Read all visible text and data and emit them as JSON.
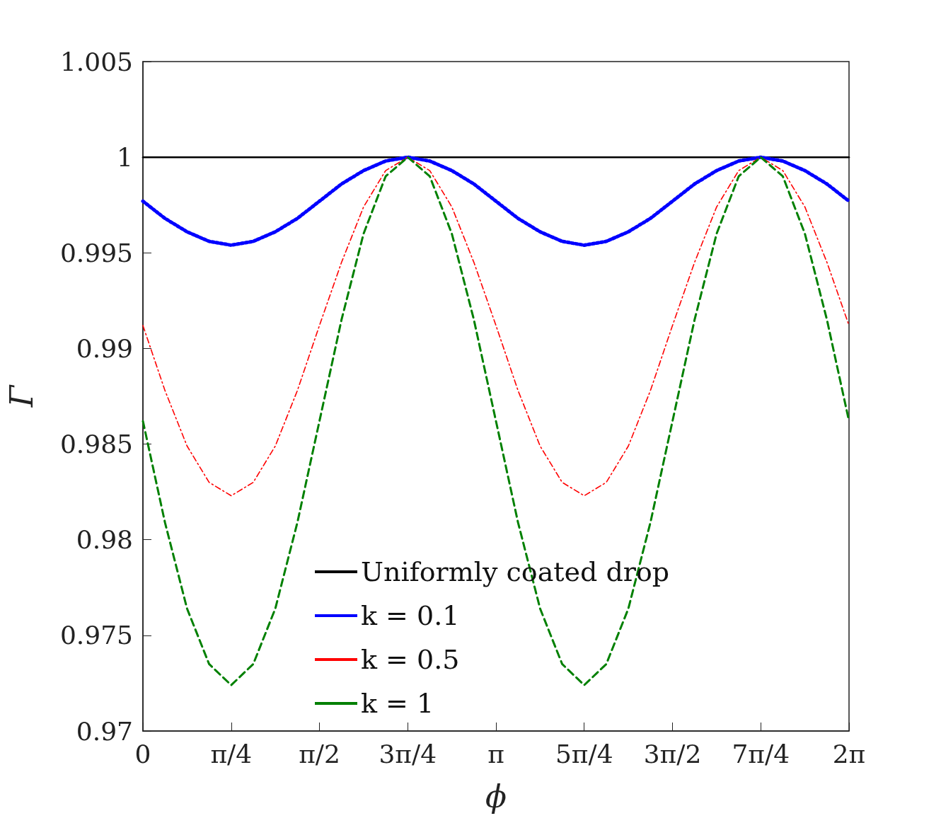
{
  "chart_data": {
    "type": "line",
    "xlabel": "ϕ",
    "ylabel": "Γ",
    "xlim": [
      0,
      6.28319
    ],
    "ylim": [
      0.97,
      1.005
    ],
    "xticks": [
      {
        "value": 0,
        "label": "0"
      },
      {
        "value": 0.7854,
        "label": "π/4"
      },
      {
        "value": 1.5708,
        "label": "π/2"
      },
      {
        "value": 2.35619,
        "label": "3π/4"
      },
      {
        "value": 3.14159,
        "label": "π"
      },
      {
        "value": 3.92699,
        "label": "5π/4"
      },
      {
        "value": 4.71239,
        "label": "3π/2"
      },
      {
        "value": 5.49779,
        "label": "7π/4"
      },
      {
        "value": 6.28319,
        "label": "2π"
      }
    ],
    "yticks": [
      0.97,
      0.975,
      0.98,
      0.985,
      0.99,
      0.995,
      1,
      1.005
    ],
    "grid": false,
    "legend": "bottom",
    "marker": "none",
    "series": [
      {
        "name": "Uniformly coated drop",
        "color": "#000000",
        "line_style": "solid",
        "x": [
          0,
          6.28319
        ],
        "values": [
          1,
          1
        ]
      },
      {
        "name": "k = 0.1",
        "color": "#0000ff",
        "line_style": "dotted",
        "x": [
          0,
          0.19635,
          0.3927,
          0.58905,
          0.7854,
          0.98175,
          1.1781,
          1.37445,
          1.5708,
          1.76715,
          1.9635,
          2.15985,
          2.35619,
          2.55254,
          2.74889,
          2.94524,
          3.14159,
          3.33794,
          3.53429,
          3.73064,
          3.92699,
          4.12334,
          4.31969,
          4.51604,
          4.71239,
          4.90874,
          5.10509,
          5.30144,
          5.49779,
          5.69414,
          5.89049,
          6.08684,
          6.28319
        ],
        "values": [
          0.9977,
          0.9968,
          0.9961,
          0.9956,
          0.9954,
          0.9956,
          0.9961,
          0.9968,
          0.9977,
          0.9986,
          0.9993,
          0.9998,
          1,
          0.9998,
          0.9993,
          0.9986,
          0.9977,
          0.9968,
          0.9961,
          0.9956,
          0.9954,
          0.9956,
          0.9961,
          0.9968,
          0.9977,
          0.9986,
          0.9993,
          0.9998,
          1,
          0.9998,
          0.9993,
          0.9986,
          0.9977
        ]
      },
      {
        "name": "k = 0.5",
        "color": "#ff0000",
        "line_style": "dashdot",
        "x": [
          0,
          0.19635,
          0.3927,
          0.58905,
          0.7854,
          0.98175,
          1.1781,
          1.37445,
          1.5708,
          1.76715,
          1.9635,
          2.15985,
          2.35619,
          2.55254,
          2.74889,
          2.94524,
          3.14159,
          3.33794,
          3.53429,
          3.73064,
          3.92699,
          4.12334,
          4.31969,
          4.51604,
          4.71239,
          4.90874,
          5.10509,
          5.30144,
          5.49779,
          5.69414,
          5.89049,
          6.08684,
          6.28319
        ],
        "values": [
          0.9912,
          0.9878,
          0.9849,
          0.983,
          0.9823,
          0.983,
          0.9849,
          0.9878,
          0.9912,
          0.9945,
          0.9974,
          0.9993,
          1,
          0.9993,
          0.9974,
          0.9945,
          0.9912,
          0.9878,
          0.9849,
          0.983,
          0.9823,
          0.983,
          0.9849,
          0.9878,
          0.9912,
          0.9945,
          0.9974,
          0.9993,
          1,
          0.9993,
          0.9974,
          0.9945,
          0.9912
        ]
      },
      {
        "name": "k = 1",
        "color": "#008000",
        "line_style": "dashed",
        "x": [
          0,
          0.19635,
          0.3927,
          0.58905,
          0.7854,
          0.98175,
          1.1781,
          1.37445,
          1.5708,
          1.76715,
          1.9635,
          2.15985,
          2.35619,
          2.55254,
          2.74889,
          2.94524,
          3.14159,
          3.33794,
          3.53429,
          3.73064,
          3.92699,
          4.12334,
          4.31969,
          4.51604,
          4.71239,
          4.90874,
          5.10509,
          5.30144,
          5.49779,
          5.69414,
          5.89049,
          6.08684,
          6.28319
        ],
        "values": [
          0.9862,
          0.9809,
          0.9764,
          0.9735,
          0.9724,
          0.9735,
          0.9764,
          0.9809,
          0.9862,
          0.9915,
          0.996,
          0.999,
          1,
          0.999,
          0.996,
          0.9915,
          0.9862,
          0.9809,
          0.9764,
          0.9735,
          0.9724,
          0.9735,
          0.9764,
          0.9809,
          0.9862,
          0.9915,
          0.996,
          0.999,
          1,
          0.999,
          0.996,
          0.9915,
          0.9862
        ]
      }
    ]
  }
}
